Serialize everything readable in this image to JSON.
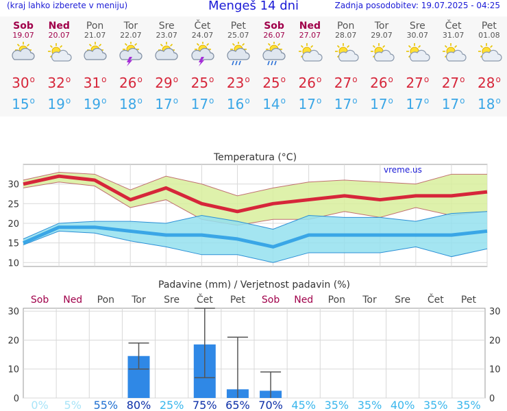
{
  "header": {
    "menu_hint": "(kraj lahko izberete v meniju)",
    "title": "Mengeš 14 dni",
    "updated": "Zadnja posodobitev: 19.07.2025 - 04:25"
  },
  "days": [
    {
      "day": "Sob",
      "date": "19.07",
      "weekend": true,
      "icon": "partly-cloudy-icon",
      "tmax": 30,
      "tmin": 15
    },
    {
      "day": "Ned",
      "date": "20.07",
      "weekend": true,
      "icon": "sun-cloud-icon",
      "tmax": 32,
      "tmin": 19
    },
    {
      "day": "Pon",
      "date": "21.07",
      "weekend": false,
      "icon": "partly-cloudy-icon",
      "tmax": 31,
      "tmin": 19
    },
    {
      "day": "Tor",
      "date": "22.07",
      "weekend": false,
      "icon": "thunderstorm-icon",
      "tmax": 26,
      "tmin": 18
    },
    {
      "day": "Sre",
      "date": "23.07",
      "weekend": false,
      "icon": "partly-cloudy-icon",
      "tmax": 29,
      "tmin": 17
    },
    {
      "day": "Čet",
      "date": "24.07",
      "weekend": false,
      "icon": "thunderstorm-icon",
      "tmax": 25,
      "tmin": 17
    },
    {
      "day": "Pet",
      "date": "25.07",
      "weekend": false,
      "icon": "rain-icon",
      "tmax": 23,
      "tmin": 16
    },
    {
      "day": "Sob",
      "date": "26.07",
      "weekend": true,
      "icon": "rain-icon",
      "tmax": 25,
      "tmin": 14
    },
    {
      "day": "Ned",
      "date": "27.07",
      "weekend": true,
      "icon": "sun-cloud-icon",
      "tmax": 26,
      "tmin": 17
    },
    {
      "day": "Pon",
      "date": "28.07",
      "weekend": false,
      "icon": "sun-cloud-icon",
      "tmax": 27,
      "tmin": 17
    },
    {
      "day": "Tor",
      "date": "29.07",
      "weekend": false,
      "icon": "sun-cloud-icon",
      "tmax": 26,
      "tmin": 17
    },
    {
      "day": "Sre",
      "date": "30.07",
      "weekend": false,
      "icon": "sun-cloud-icon",
      "tmax": 27,
      "tmin": 17
    },
    {
      "day": "Čet",
      "date": "31.07",
      "weekend": false,
      "icon": "sun-cloud-icon",
      "tmax": 27,
      "tmin": 17
    },
    {
      "day": "Pet",
      "date": "01.08",
      "weekend": false,
      "icon": "sun-cloud-icon",
      "tmax": 28,
      "tmin": 18
    }
  ],
  "degree_symbol": "o",
  "colors": {
    "tmax": "#d6263a",
    "tmin": "#3aa6e6",
    "weekend": "#a0004a",
    "max_band": "#d8ef9c",
    "min_band": "#94e0ee",
    "bar": "#2f88e6"
  },
  "chart_data": [
    {
      "type": "line",
      "title": "Temperatura (°C)",
      "watermark": "vreme.us",
      "ylim": [
        9,
        35
      ],
      "yticks": [
        10,
        15,
        20,
        25,
        30
      ],
      "grid": true,
      "series": [
        {
          "name": "Tmax",
          "values": [
            30,
            32,
            31,
            26,
            29,
            25,
            23,
            25,
            26,
            27,
            26,
            27,
            27,
            28
          ]
        },
        {
          "name": "Tmin",
          "values": [
            15,
            19,
            19,
            18,
            17,
            17,
            16,
            14,
            17,
            17,
            17,
            17,
            17,
            18
          ]
        },
        {
          "name": "Tmax range high",
          "values": [
            31,
            33,
            32.5,
            28.5,
            32,
            30,
            27,
            29,
            30.5,
            31,
            30.5,
            30,
            32.5,
            32.5
          ]
        },
        {
          "name": "Tmax range low",
          "values": [
            29,
            30.5,
            29.5,
            24,
            26,
            21,
            19.5,
            21,
            21,
            23,
            21.5,
            24,
            22,
            23
          ]
        },
        {
          "name": "Tmin range high",
          "values": [
            16,
            20,
            20.5,
            20.5,
            20,
            22,
            20.5,
            18.5,
            22,
            21.5,
            21.5,
            20.5,
            22.5,
            23
          ]
        },
        {
          "name": "Tmin range low",
          "values": [
            14.5,
            18,
            17.5,
            15.5,
            14,
            12,
            12,
            10,
            12.5,
            12.5,
            12.5,
            14,
            11.5,
            13.5
          ]
        }
      ]
    },
    {
      "type": "bar",
      "title": "Padavine (mm) / Verjetnost padavin (%)",
      "categories": [
        "Sob",
        "Ned",
        "Pon",
        "Tor",
        "Sre",
        "Čet",
        "Pet",
        "Sob",
        "Ned",
        "Pon",
        "Tor",
        "Sre",
        "Čet",
        "Pet"
      ],
      "values": [
        0,
        0,
        0,
        14.5,
        0,
        18.5,
        3,
        2.5,
        0,
        0,
        0,
        0,
        0,
        0
      ],
      "error_high": [
        null,
        null,
        null,
        19,
        null,
        31,
        21,
        9,
        null,
        null,
        null,
        null,
        null,
        null
      ],
      "error_low": [
        null,
        null,
        null,
        10,
        null,
        7,
        0,
        0,
        null,
        null,
        null,
        null,
        null,
        null
      ],
      "probability_labels": [
        "0%",
        "5%",
        "55%",
        "80%",
        "25%",
        "75%",
        "65%",
        "70%",
        "45%",
        "35%",
        "35%",
        "40%",
        "35%",
        "35%"
      ],
      "ylim": [
        0,
        31
      ],
      "yticks": [
        0,
        10,
        20,
        30
      ],
      "xlabel": "",
      "ylabel": ""
    }
  ]
}
